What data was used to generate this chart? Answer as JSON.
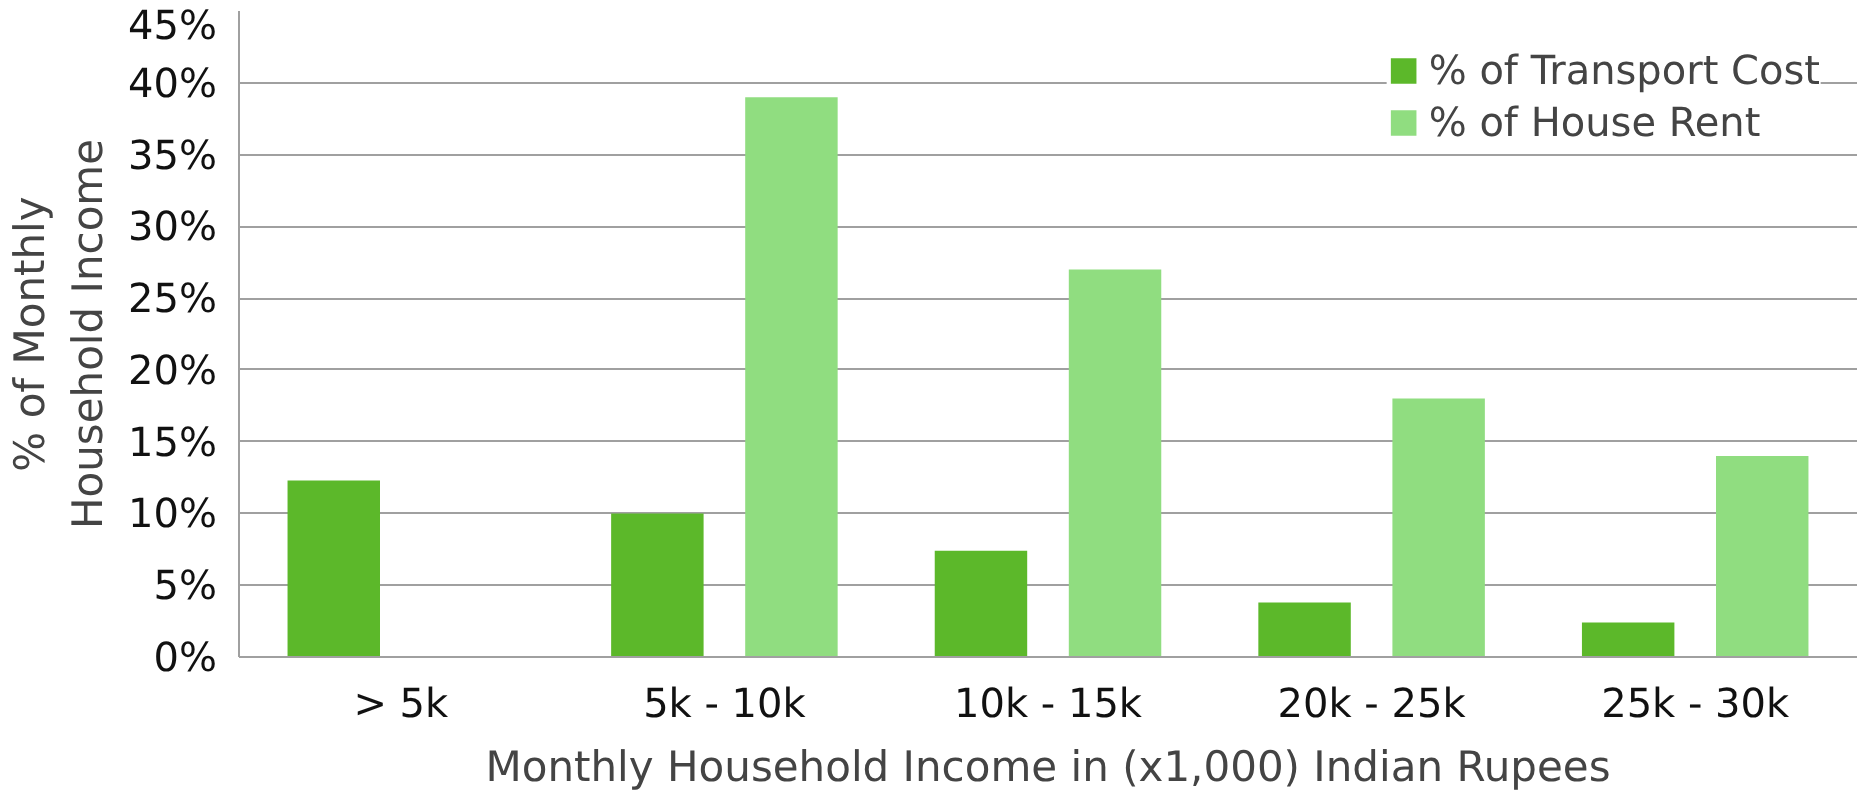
{
  "chart_data": {
    "type": "bar",
    "xlabel": "Monthly Household Income in (x1,000) Indian Rupees",
    "ylabel": "% of Monthly\nHousehold Income",
    "categories": [
      "> 5k",
      "5k - 10k",
      "10k - 15k",
      "20k - 25k",
      "25k - 30k"
    ],
    "series": [
      {
        "name": "% of Transport Cost",
        "color": "#5cb82a",
        "values": [
          12.3,
          10,
          7.4,
          3.8,
          2.4
        ]
      },
      {
        "name": "% of House Rent",
        "color": "#90dd80",
        "values": [
          null,
          39,
          27,
          18,
          14
        ]
      }
    ],
    "ylim": [
      0,
      45
    ],
    "yticks": [
      {
        "value": 0,
        "label": "0%"
      },
      {
        "value": 5,
        "label": "5%"
      },
      {
        "value": 10,
        "label": "10%"
      },
      {
        "value": 15,
        "label": "15%"
      },
      {
        "value": 20,
        "label": "20%"
      },
      {
        "value": 25,
        "label": "25%"
      },
      {
        "value": 30,
        "label": "30%"
      },
      {
        "value": 35,
        "label": "35%"
      },
      {
        "value": 40,
        "label": "40%"
      },
      {
        "value": 45,
        "label": "45%"
      }
    ],
    "grid": "y",
    "legend": "top right"
  }
}
